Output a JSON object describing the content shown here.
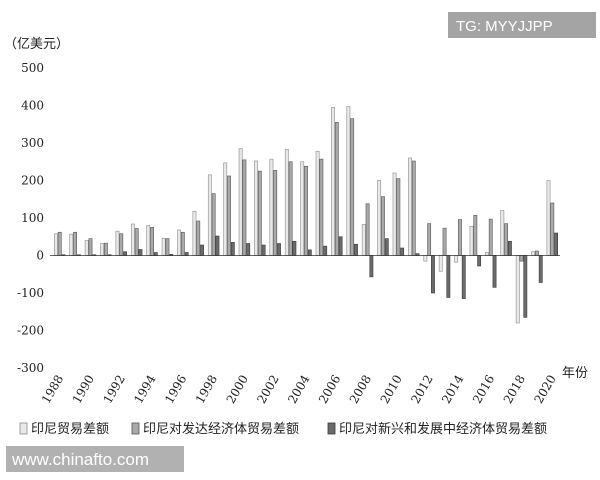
{
  "chart_data": {
    "type": "bar",
    "title": "",
    "ylabel": "（亿美元）",
    "xlabel": "年份",
    "ylim": [
      -300,
      500
    ],
    "yticks": [
      -300,
      -200,
      -100,
      0,
      100,
      200,
      300,
      400,
      500
    ],
    "grid": false,
    "legend_position": "bottom",
    "categories": [
      "1988",
      "1989",
      "1990",
      "1991",
      "1992",
      "1993",
      "1994",
      "1995",
      "1996",
      "1997",
      "1998",
      "1999",
      "2000",
      "2001",
      "2002",
      "2003",
      "2004",
      "2005",
      "2006",
      "2007",
      "2008",
      "2009",
      "2010",
      "2011",
      "2012",
      "2013",
      "2014",
      "2015",
      "2016",
      "2017",
      "2018",
      "2019",
      "2020"
    ],
    "xtick_labels": [
      "1988",
      "1990",
      "1992",
      "1994",
      "1996",
      "1998",
      "2000",
      "2002",
      "2004",
      "2006",
      "2008",
      "2010",
      "2012",
      "2014",
      "2016",
      "2018",
      "2020"
    ],
    "series": [
      {
        "name": "印尼贸易差额",
        "values": [
          58,
          57,
          40,
          32,
          65,
          84,
          80,
          46,
          68,
          118,
          215,
          247,
          285,
          252,
          257,
          283,
          250,
          278,
          395,
          397,
          83,
          200,
          220,
          260,
          -15,
          -42,
          -18,
          78,
          8,
          120,
          -180,
          10,
          200
        ]
      },
      {
        "name": "印尼对发达经济体贸易差额",
        "values": [
          62,
          62,
          45,
          33,
          58,
          72,
          75,
          45,
          62,
          92,
          165,
          212,
          255,
          225,
          227,
          250,
          238,
          257,
          355,
          365,
          138,
          157,
          205,
          252,
          85,
          73,
          96,
          107,
          97,
          85,
          -15,
          12,
          140
        ]
      },
      {
        "name": "印尼对新兴和发展中经济体贸易差额",
        "values": [
          2,
          2,
          2,
          2,
          10,
          16,
          8,
          3,
          8,
          28,
          52,
          35,
          32,
          28,
          32,
          38,
          15,
          25,
          50,
          30,
          -57,
          45,
          20,
          5,
          -100,
          -112,
          -115,
          -28,
          -85,
          38,
          -165,
          -72,
          60
        ]
      }
    ],
    "series_style": [
      {
        "fill": "#e8e8e8",
        "stroke": "#8c8c8c"
      },
      {
        "fill": "#a9a9a9",
        "stroke": "#555555"
      },
      {
        "fill": "#6b6b6b",
        "stroke": "#3a3a3a"
      }
    ]
  },
  "watermark": {
    "top_right": "TG: MYYJJPP",
    "bottom_left": "www.chinafto.com"
  }
}
